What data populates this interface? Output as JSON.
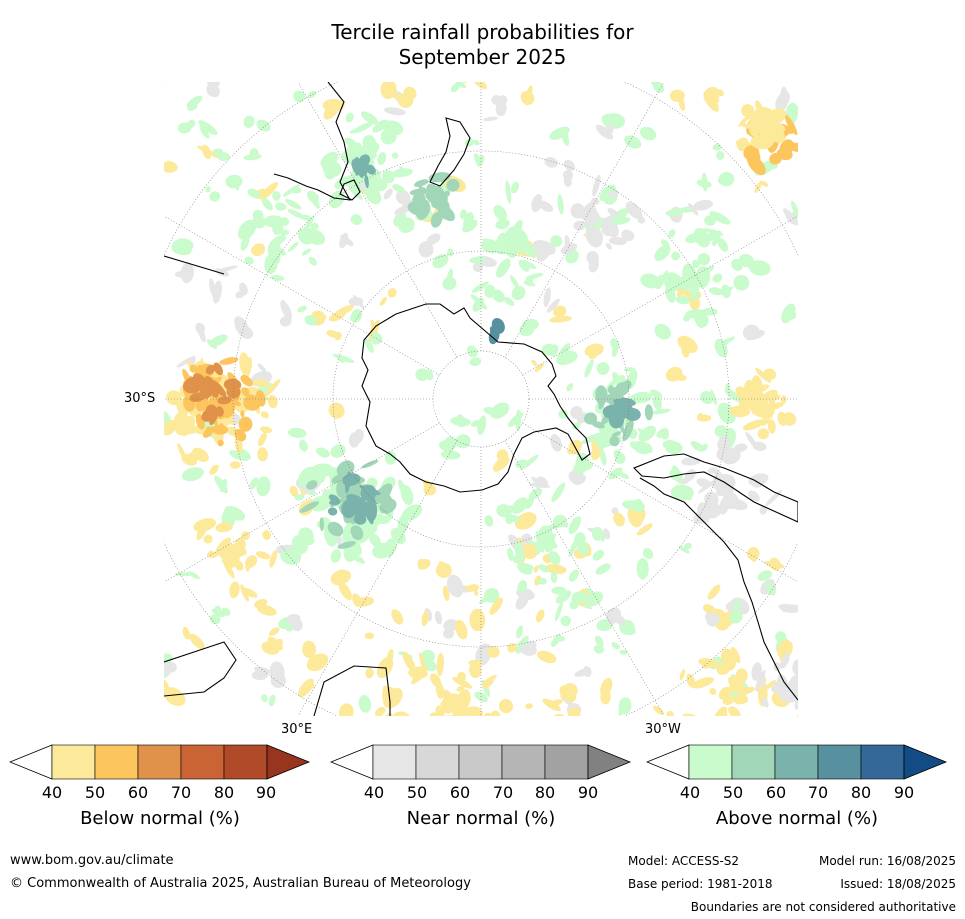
{
  "title": {
    "line1": "Tercile rainfall probabilities for",
    "line2": "September 2025"
  },
  "map": {
    "projection": "south-polar-stereographic",
    "labels": {
      "lat": "30°S",
      "lon_east": "30°E",
      "lon_west": "30°W"
    },
    "colors": {
      "ocean_white": "#ffffff",
      "coastline": "#000000",
      "border": "#888888",
      "gridline": "#777777"
    }
  },
  "colorbars": [
    {
      "label": "Below normal (%)",
      "ticks": [
        "40",
        "50",
        "60",
        "70",
        "80",
        "90"
      ],
      "colors": [
        "#ffffff",
        "#fde99a",
        "#fcc55e",
        "#e0914a",
        "#cb6434",
        "#b04a28",
        "#98351f"
      ]
    },
    {
      "label": "Near normal (%)",
      "ticks": [
        "40",
        "50",
        "60",
        "70",
        "80",
        "90"
      ],
      "colors": [
        "#ffffff",
        "#e6e6e6",
        "#d8d8d8",
        "#c9c9c9",
        "#b5b5b5",
        "#a2a2a2",
        "#818181"
      ]
    },
    {
      "label": "Above normal (%)",
      "ticks": [
        "40",
        "50",
        "60",
        "70",
        "80",
        "90"
      ],
      "colors": [
        "#ffffff",
        "#c9fbcc",
        "#a2d6b8",
        "#7ab3ac",
        "#5791a0",
        "#336898",
        "#134b85"
      ]
    }
  ],
  "footer": {
    "website": "www.bom.gov.au/climate",
    "copyright": "© Commonwealth of Australia 2025, Australian Bureau of Meteorology",
    "model": "Model: ACCESS-S2",
    "base_period": "Base period: 1981-2018",
    "model_run": "Model run: 16/08/2025",
    "issued": "Issued: 18/08/2025",
    "disclaimer": "Boundaries are not considered authoritative"
  }
}
